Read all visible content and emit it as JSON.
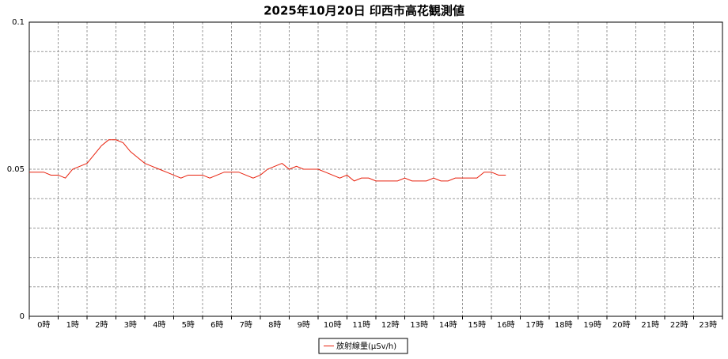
{
  "chart_data": {
    "type": "line",
    "title": "2025年10月20日 印西市高花観測値",
    "categories": [
      "0時",
      "1時",
      "2時",
      "3時",
      "4時",
      "5時",
      "6時",
      "7時",
      "8時",
      "9時",
      "10時",
      "11時",
      "12時",
      "13時",
      "14時",
      "15時",
      "16時",
      "17時",
      "18時",
      "19時",
      "20時",
      "21時",
      "22時",
      "23時"
    ],
    "xlim": [
      0,
      24
    ],
    "xticks": [
      0,
      1,
      2,
      3,
      4,
      5,
      6,
      7,
      8,
      9,
      10,
      11,
      12,
      13,
      14,
      15,
      16,
      17,
      18,
      19,
      20,
      21,
      22,
      23,
      24
    ],
    "ylim": [
      0,
      0.1
    ],
    "yticks": [
      0,
      0.05,
      0.1
    ],
    "ygrid": [
      0.01,
      0.02,
      0.03,
      0.04,
      0.06,
      0.07,
      0.08,
      0.09
    ],
    "grid": true,
    "legend": "bottom",
    "x": [
      0,
      0.25,
      0.5,
      0.75,
      1,
      1.25,
      1.5,
      1.75,
      2,
      2.25,
      2.5,
      2.75,
      3,
      3.25,
      3.5,
      3.75,
      4,
      4.25,
      4.5,
      4.75,
      5,
      5.25,
      5.5,
      5.75,
      6,
      6.25,
      6.5,
      6.75,
      7,
      7.25,
      7.5,
      7.75,
      8,
      8.25,
      8.5,
      8.75,
      9,
      9.25,
      9.5,
      9.75,
      10,
      10.25,
      10.5,
      10.75,
      11,
      11.25,
      11.5,
      11.75,
      12,
      12.25,
      12.5,
      12.75,
      13,
      13.25,
      13.5,
      13.75,
      14,
      14.25,
      14.5,
      14.75,
      15,
      15.25,
      15.5,
      15.75,
      16,
      16.25,
      16.5
    ],
    "series": [
      {
        "name": "放射線量(μSv/h)",
        "color": "#e8200c",
        "values": [
          0.049,
          0.049,
          0.049,
          0.048,
          0.048,
          0.047,
          0.05,
          0.051,
          0.052,
          0.055,
          0.058,
          0.06,
          0.06,
          0.059,
          0.056,
          0.054,
          0.052,
          0.051,
          0.05,
          0.049,
          0.048,
          0.047,
          0.048,
          0.048,
          0.048,
          0.047,
          0.048,
          0.049,
          0.049,
          0.049,
          0.048,
          0.047,
          0.048,
          0.05,
          0.051,
          0.052,
          0.05,
          0.051,
          0.05,
          0.05,
          0.05,
          0.049,
          0.048,
          0.047,
          0.048,
          0.046,
          0.047,
          0.047,
          0.046,
          0.046,
          0.046,
          0.046,
          0.047,
          0.046,
          0.046,
          0.046,
          0.047,
          0.046,
          0.046,
          0.047,
          0.047,
          0.047,
          0.047,
          0.049,
          0.049,
          0.048,
          0.048
        ]
      }
    ]
  }
}
